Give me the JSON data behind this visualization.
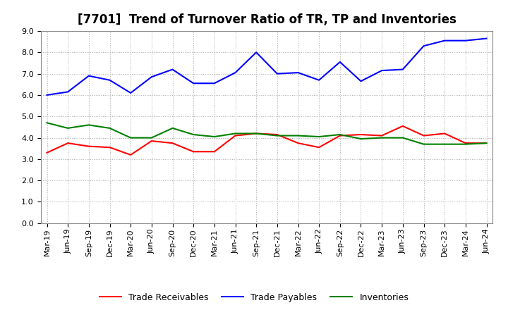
{
  "title": "[7701]  Trend of Turnover Ratio of TR, TP and Inventories",
  "x_labels": [
    "Mar-19",
    "Jun-19",
    "Sep-19",
    "Dec-19",
    "Mar-20",
    "Jun-20",
    "Sep-20",
    "Dec-20",
    "Mar-21",
    "Jun-21",
    "Sep-21",
    "Dec-21",
    "Mar-22",
    "Jun-22",
    "Sep-22",
    "Dec-22",
    "Mar-23",
    "Jun-23",
    "Sep-23",
    "Dec-23",
    "Mar-24",
    "Jun-24"
  ],
  "trade_receivables": [
    3.3,
    3.75,
    3.6,
    3.55,
    3.2,
    3.85,
    3.75,
    3.35,
    3.35,
    4.1,
    4.2,
    4.15,
    3.75,
    3.55,
    4.1,
    4.15,
    4.1,
    4.55,
    4.1,
    4.2,
    3.75,
    3.75
  ],
  "trade_payables": [
    6.0,
    6.15,
    6.9,
    6.7,
    6.1,
    6.85,
    7.2,
    6.55,
    6.55,
    7.05,
    8.0,
    7.0,
    7.05,
    6.7,
    7.55,
    6.65,
    7.15,
    7.2,
    8.3,
    8.55,
    8.55,
    8.65
  ],
  "inventories": [
    4.7,
    4.45,
    4.6,
    4.45,
    4.0,
    4.0,
    4.45,
    4.15,
    4.05,
    4.2,
    4.2,
    4.1,
    4.1,
    4.05,
    4.15,
    3.95,
    4.0,
    4.0,
    3.7,
    3.7,
    3.7,
    3.75
  ],
  "ylim": [
    0.0,
    9.0
  ],
  "yticks": [
    0.0,
    1.0,
    2.0,
    3.0,
    4.0,
    5.0,
    6.0,
    7.0,
    8.0,
    9.0
  ],
  "color_tr": "#ff0000",
  "color_tp": "#0000ff",
  "color_inv": "#008000",
  "bg_color": "#ffffff",
  "plot_bg_color": "#ffffff",
  "grid_color": "#aaaaaa",
  "title_fontsize": 12,
  "legend_fontsize": 9,
  "tick_fontsize": 8
}
